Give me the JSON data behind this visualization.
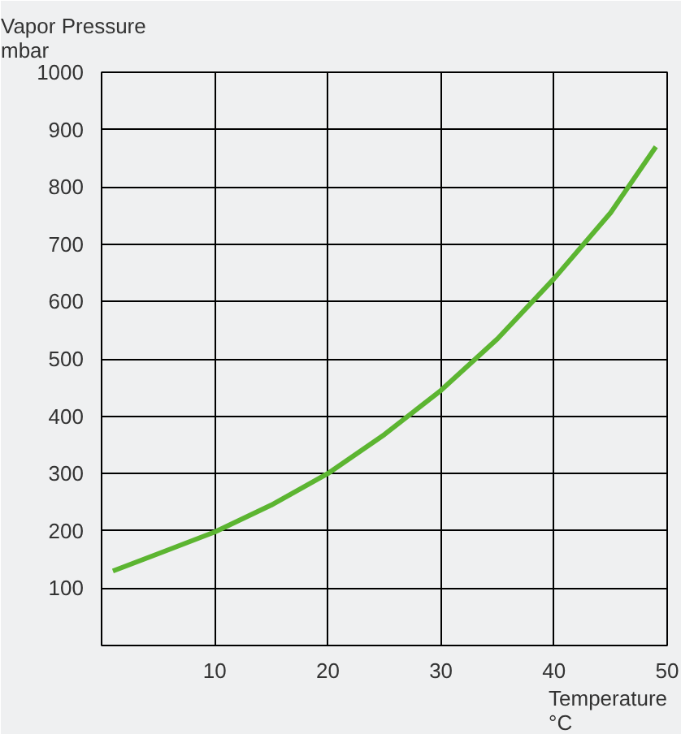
{
  "chart_data": {
    "type": "line",
    "ylabel": "Vapor Pressure\nmbar",
    "xlabel": "Temperature\n°C",
    "x": [
      1,
      5,
      10,
      15,
      20,
      25,
      30,
      35,
      40,
      45,
      49
    ],
    "series": [
      {
        "color": "#5cb531",
        "values": [
          130,
          160,
          198,
          245,
          300,
          368,
          445,
          535,
          640,
          755,
          870
        ]
      }
    ],
    "xlim": [
      0,
      50
    ],
    "ylim": [
      0,
      1000
    ],
    "xticks": [
      10,
      20,
      30,
      40,
      50
    ],
    "yticks": [
      100,
      200,
      300,
      400,
      500,
      600,
      700,
      800,
      900,
      1000
    ],
    "grid": true,
    "marker": "none",
    "line_style": "solid"
  }
}
